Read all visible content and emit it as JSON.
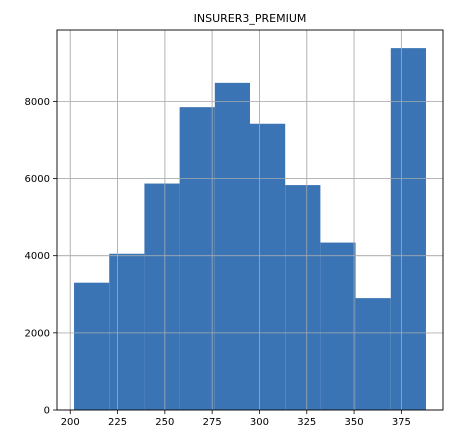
{
  "chart_data": {
    "type": "bar",
    "title": "INSURER3_PREMIUM",
    "xlabel": "",
    "ylabel": "",
    "bin_edges": [
      202.0,
      220.6,
      239.2,
      257.8,
      276.4,
      295.0,
      313.6,
      332.2,
      350.8,
      369.4,
      388.0
    ],
    "values": [
      3300,
      4050,
      5870,
      7850,
      8480,
      7420,
      5830,
      4340,
      2900,
      9380
    ],
    "xlim": [
      193,
      397
    ],
    "ylim": [
      0,
      9850
    ],
    "xticks": [
      200,
      225,
      250,
      275,
      300,
      325,
      350,
      375
    ],
    "yticks": [
      0,
      2000,
      4000,
      6000,
      8000
    ],
    "grid": true,
    "colors": {
      "bar": "#3b74b4",
      "grid": "#b0b0b0",
      "axis": "#000000"
    }
  }
}
